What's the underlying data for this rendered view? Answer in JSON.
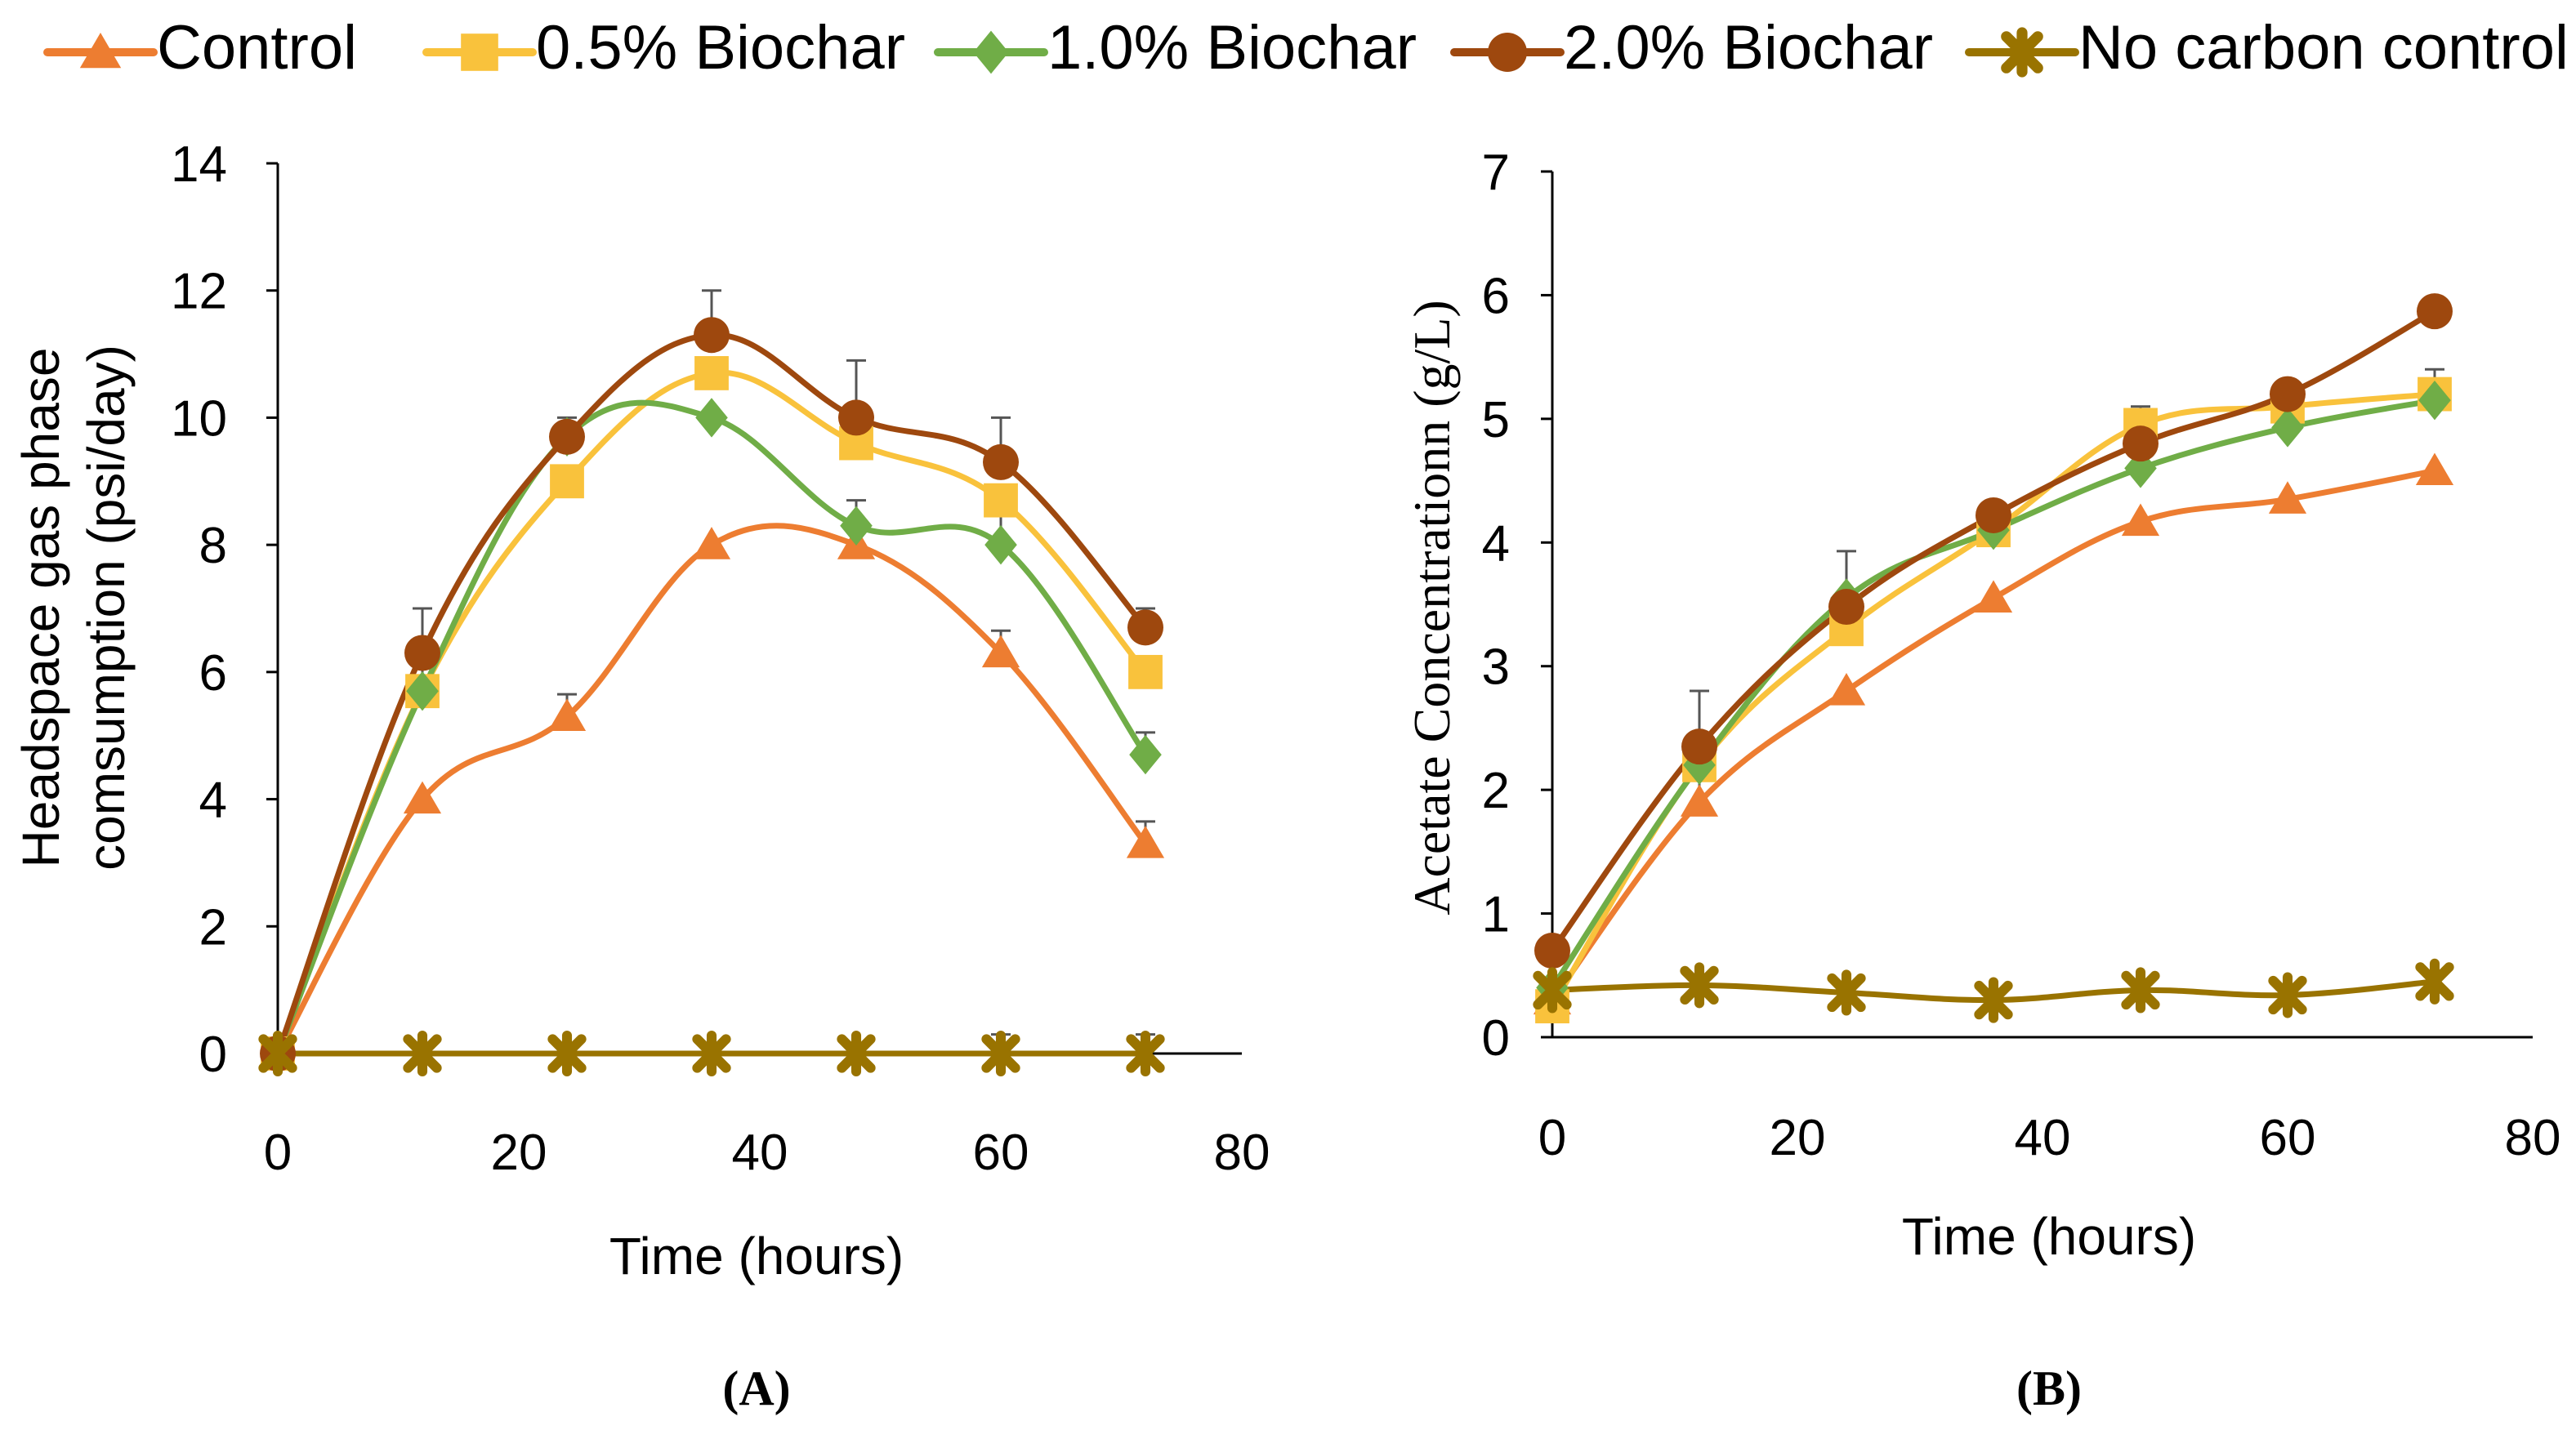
{
  "legend": {
    "items": [
      {
        "name": "Control",
        "color": "#ED7D31",
        "marker": "triangle"
      },
      {
        "name": "0.5% Biochar",
        "color": "#F9C23C",
        "marker": "square"
      },
      {
        "name": "1.0% Biochar",
        "color": "#70AD47",
        "marker": "diamond"
      },
      {
        "name": "2.0% Biochar",
        "color": "#9E480E",
        "marker": "circle"
      },
      {
        "name": "No carbon control",
        "color": "#997300",
        "marker": "star"
      }
    ]
  },
  "chart_data": [
    {
      "type": "line",
      "panel_label": "(A)",
      "title": "",
      "xlabel": "Time (hours)",
      "ylabel_line1": "Headspace gas phase",
      "ylabel_line2": "comsumption (psi/day)",
      "xlim": [
        0,
        80
      ],
      "ylim": [
        0,
        14
      ],
      "xticks": [
        0,
        20,
        40,
        60,
        80
      ],
      "yticks": [
        0,
        2,
        4,
        6,
        8,
        10,
        12,
        14
      ],
      "xtick_labels": [
        "0",
        "20",
        "40",
        "60",
        "80"
      ],
      "ytick_labels": [
        "0",
        "2",
        "4",
        "6",
        "8",
        "10",
        "12",
        "14"
      ],
      "grid": false,
      "x": [
        0,
        12,
        24,
        36,
        48,
        60,
        72
      ],
      "series": [
        {
          "name": "Control",
          "values": [
            0,
            4.0,
            5.3,
            8.0,
            8.0,
            6.3,
            3.3
          ],
          "err": [
            0,
            0,
            0.35,
            0,
            0,
            0.35,
            0.35
          ]
        },
        {
          "name": "0.5% Biochar",
          "values": [
            0,
            5.7,
            9.0,
            10.7,
            9.6,
            8.7,
            6.0
          ],
          "err": [
            0,
            0,
            0,
            0,
            0,
            0,
            0
          ]
        },
        {
          "name": "1.0% Biochar",
          "values": [
            0,
            5.7,
            9.7,
            10.0,
            8.3,
            8.0,
            4.7
          ],
          "err": [
            0,
            0.7,
            0,
            0,
            0.4,
            0.6,
            0.35
          ]
        },
        {
          "name": "2.0% Biochar",
          "values": [
            0,
            6.3,
            9.7,
            11.3,
            10.0,
            9.3,
            6.7
          ],
          "err": [
            0,
            0.7,
            0.3,
            0.7,
            0.9,
            0.7,
            0.3
          ]
        },
        {
          "name": "No carbon control",
          "values": [
            0,
            0,
            0,
            0,
            0,
            0,
            0
          ],
          "err": [
            0,
            0,
            0,
            0,
            0,
            0.3,
            0.3
          ]
        }
      ]
    },
    {
      "type": "line",
      "panel_label": "(B)",
      "title": "",
      "xlabel": "Time (hours)",
      "ylabel": "Acetate Concentrationn (g/L)",
      "xlim": [
        0,
        80
      ],
      "ylim": [
        0,
        7
      ],
      "xticks": [
        0,
        20,
        40,
        60,
        80
      ],
      "yticks": [
        0,
        1,
        2,
        3,
        4,
        5,
        6,
        7
      ],
      "xtick_labels": [
        "0",
        "20",
        "40",
        "60",
        "80"
      ],
      "ytick_labels": [
        "0",
        "1",
        "2",
        "3",
        "4",
        "5",
        "6",
        "7"
      ],
      "grid": false,
      "x": [
        0,
        12,
        24,
        36,
        48,
        60,
        72
      ],
      "series": [
        {
          "name": "Control",
          "values": [
            0.3,
            1.9,
            2.8,
            3.55,
            4.17,
            4.35,
            4.58
          ],
          "err": [
            0,
            0.25,
            0,
            0,
            0,
            0,
            0
          ]
        },
        {
          "name": "0.5% Biochar",
          "values": [
            0.25,
            2.2,
            3.3,
            4.1,
            4.95,
            5.1,
            5.2
          ],
          "err": [
            0,
            0,
            0,
            0,
            0.15,
            0,
            0.2
          ]
        },
        {
          "name": "1.0% Biochar",
          "values": [
            0.4,
            2.2,
            3.55,
            4.1,
            4.6,
            4.93,
            5.15
          ],
          "err": [
            0,
            0,
            0,
            0,
            0,
            0,
            0
          ]
        },
        {
          "name": "2.0% Biochar",
          "values": [
            0.7,
            2.35,
            3.48,
            4.22,
            4.8,
            5.2,
            5.87
          ],
          "err": [
            0,
            0.45,
            0.45,
            0,
            0.1,
            0,
            0
          ]
        },
        {
          "name": "No carbon control",
          "values": [
            0.38,
            0.42,
            0.36,
            0.3,
            0.38,
            0.34,
            0.45
          ],
          "err": [
            0,
            0,
            0,
            0,
            0,
            0,
            0
          ]
        }
      ]
    }
  ]
}
